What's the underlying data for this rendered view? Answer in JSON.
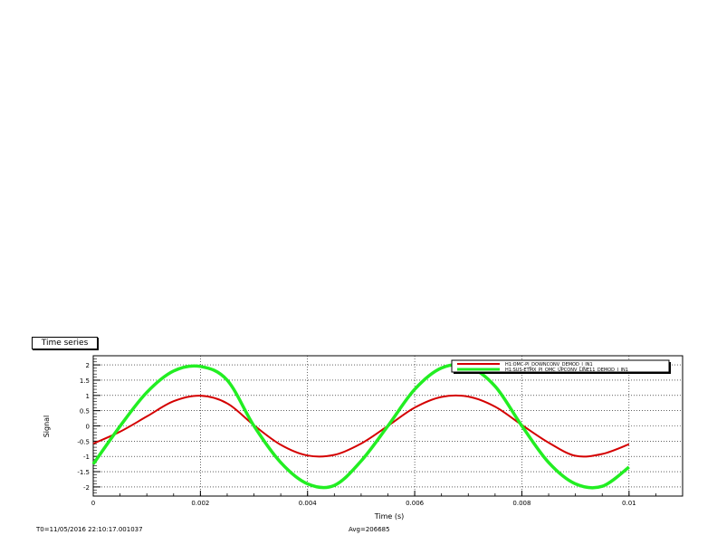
{
  "title": "Time series",
  "footer": {
    "t0": "T0=11/05/2016 22:10:17.001037",
    "avg": "Avg=206685"
  },
  "chart_data": {
    "type": "line",
    "xlabel": "Time (s)",
    "ylabel": "Signal",
    "xlim": [
      0,
      0.011
    ],
    "ylim": [
      -2.3,
      2.3
    ],
    "x_ticks": [
      0,
      0.002,
      0.004,
      0.006,
      0.008,
      0.01
    ],
    "x_tick_labels": [
      "0",
      "0.002",
      "0.004",
      "0.006",
      "0.008",
      "0.01"
    ],
    "y_ticks": [
      2,
      1.5,
      1,
      0.5,
      0,
      -0.5,
      -1,
      -1.5,
      -2
    ],
    "y_tick_labels": [
      "2",
      "1.5",
      "1",
      "0.5",
      "0",
      "-0.5",
      "-1",
      "-1.5",
      "-2"
    ],
    "grid": true,
    "legend_position": "top-right",
    "series": [
      {
        "name": "H1:OMC-PI_DOWNCONV_DEMOD_I_IN1",
        "color": "#d40000",
        "x": [
          0,
          0.0005,
          0.001,
          0.0015,
          0.002,
          0.0025,
          0.003,
          0.0035,
          0.004,
          0.0045,
          0.005,
          0.0055,
          0.006,
          0.0065,
          0.007,
          0.0075,
          0.008,
          0.0085,
          0.009,
          0.0095,
          0.01
        ],
        "y": [
          -0.58,
          -0.19,
          0.31,
          0.81,
          0.99,
          0.74,
          0.02,
          -0.62,
          -0.97,
          -0.95,
          -0.58,
          0.0,
          0.6,
          0.95,
          0.96,
          0.63,
          0.03,
          -0.55,
          -0.98,
          -0.92,
          -0.6
        ]
      },
      {
        "name": "H1:SUS-ETMX_PI_OMC_UPCONV_LINE11_DEMOD_I_IN1",
        "color": "#22ee22",
        "x": [
          0,
          0.0005,
          0.001,
          0.0015,
          0.002,
          0.0025,
          0.003,
          0.0035,
          0.004,
          0.0045,
          0.005,
          0.0055,
          0.006,
          0.0065,
          0.007,
          0.0075,
          0.008,
          0.0085,
          0.009,
          0.0095,
          0.01
        ],
        "y": [
          -1.25,
          -0.01,
          1.1,
          1.8,
          1.95,
          1.5,
          0.0,
          -1.2,
          -1.9,
          -1.95,
          -1.15,
          0.0,
          1.2,
          1.9,
          1.95,
          1.3,
          0.0,
          -1.2,
          -1.9,
          -1.98,
          -1.35
        ]
      }
    ]
  }
}
